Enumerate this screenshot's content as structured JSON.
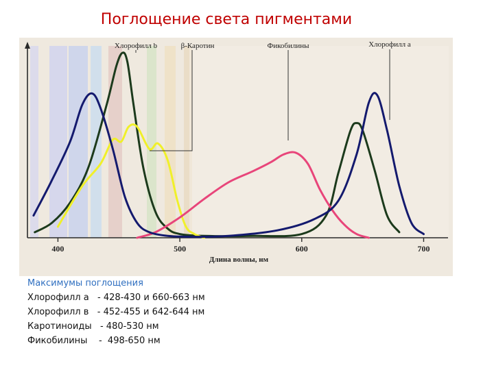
{
  "slide": {
    "title": "Поглощение света пигментами"
  },
  "chart_data": {
    "type": "line",
    "xlabel": "Длина волны, нм",
    "ylabel": "",
    "xlim": [
      375,
      720
    ],
    "ylim": [
      0,
      1
    ],
    "x_ticks": [
      400,
      500,
      600,
      700
    ],
    "grid": false,
    "legend": "labels-on-top",
    "series": [
      {
        "name": "Хлорофилл b",
        "color": "#1c3a1c",
        "x": [
          381,
          395,
          410,
          425,
          440,
          448,
          453,
          457,
          462,
          470,
          480,
          490,
          500,
          520,
          560,
          600,
          620,
          630,
          640,
          645,
          650,
          660,
          670,
          680
        ],
        "y": [
          0.03,
          0.08,
          0.19,
          0.38,
          0.72,
          0.93,
          1.0,
          0.95,
          0.72,
          0.38,
          0.14,
          0.05,
          0.02,
          0.01,
          0.01,
          0.02,
          0.12,
          0.35,
          0.58,
          0.62,
          0.58,
          0.36,
          0.12,
          0.03
        ]
      },
      {
        "name": "β-Каротин",
        "color": "#f0f02a",
        "x": [
          400,
          420,
          435,
          445,
          452,
          458,
          465,
          475,
          482,
          490,
          498,
          505,
          512,
          520
        ],
        "y": [
          0.06,
          0.28,
          0.4,
          0.53,
          0.52,
          0.6,
          0.6,
          0.48,
          0.51,
          0.42,
          0.2,
          0.06,
          0.02,
          0.0
        ]
      },
      {
        "name": "Фикобилины",
        "color": "#e8457a",
        "x": [
          465,
          480,
          500,
          520,
          540,
          560,
          575,
          585,
          595,
          605,
          615,
          625,
          635,
          645,
          655
        ],
        "y": [
          0.0,
          0.03,
          0.11,
          0.21,
          0.3,
          0.36,
          0.41,
          0.45,
          0.46,
          0.4,
          0.26,
          0.15,
          0.07,
          0.02,
          0.0
        ]
      },
      {
        "name": "Хлорофилл a",
        "color": "#141a6e",
        "x": [
          380,
          395,
          410,
          420,
          428,
          435,
          445,
          455,
          465,
          475,
          490,
          510,
          540,
          580,
          610,
          630,
          645,
          655,
          662,
          670,
          680,
          690,
          700
        ],
        "y": [
          0.12,
          0.31,
          0.52,
          0.72,
          0.78,
          0.7,
          0.48,
          0.22,
          0.08,
          0.03,
          0.01,
          0.005,
          0.01,
          0.04,
          0.1,
          0.2,
          0.45,
          0.73,
          0.77,
          0.58,
          0.28,
          0.08,
          0.02
        ]
      }
    ],
    "annotations": [
      "Хлорофилл b",
      "β-Каротин",
      "Фикобилины",
      "Хлорофилл a"
    ]
  },
  "caption": {
    "heading": "Максимумы поглощения",
    "rows": [
      "Хлорофилл а   - 428-430 и 660-663 нм",
      "Хлорофилл в   - 452-455 и 642-644 нм",
      "Каротиноиды   - 480-530 нм",
      "Фикобилины    -  498-650 нм"
    ]
  }
}
